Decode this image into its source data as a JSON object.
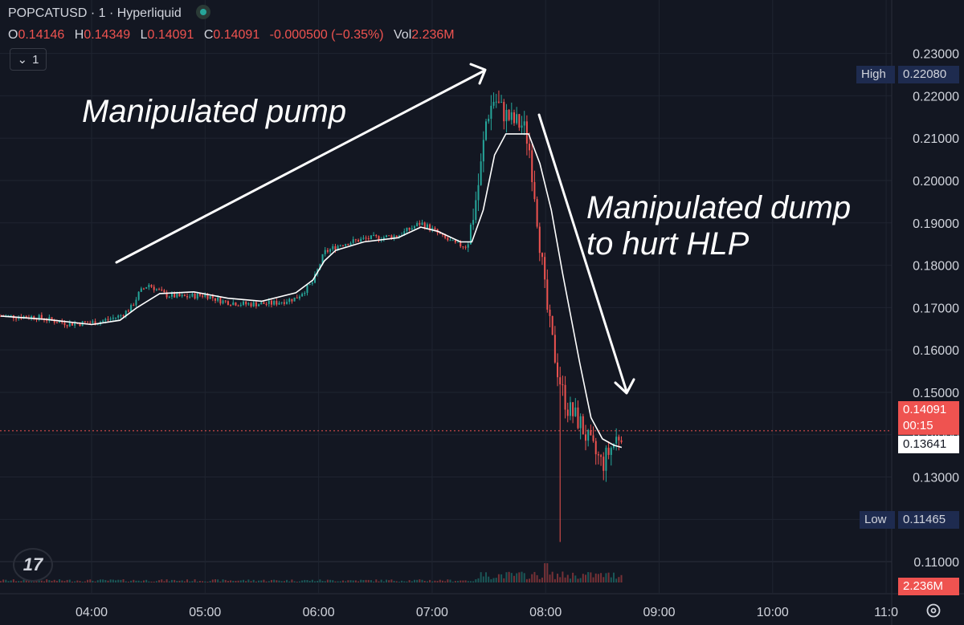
{
  "header": {
    "title": "POPCATUSD · 1 · Hyperliquid",
    "ohlc": [
      {
        "k": "O",
        "v": "0.14146"
      },
      {
        "k": "H",
        "v": "0.14349"
      },
      {
        "k": "L",
        "v": "0.14091"
      },
      {
        "k": "C",
        "v": "0.14091"
      },
      {
        "k": "",
        "v": "-0.000500 (−0.35%)"
      },
      {
        "k": "Vol",
        "v": "2.236M"
      }
    ],
    "indicator_count": "1"
  },
  "annotations": {
    "pump": "Manipulated pump",
    "dump_line1": "Manipulated dump",
    "dump_line2": "to hurt HLP"
  },
  "price_tags": {
    "high_label": "High",
    "high_value": "0.22080",
    "low_label": "Low",
    "low_value": "0.11465",
    "last_price": "0.14091",
    "countdown": "00:15",
    "ma_value": "0.13641",
    "volume": "2.236M"
  },
  "colors": {
    "background": "#131722",
    "up": "#26a69a",
    "down": "#ef5350",
    "ma": "#ffffff",
    "tag_navy": "#1e2b4f"
  },
  "chart_data": {
    "type": "candlestick",
    "grid": true,
    "y_axis": {
      "range": [
        0.105,
        0.234
      ],
      "ticks": [
        "0.23000",
        "0.22000",
        "0.21000",
        "0.20000",
        "0.19000",
        "0.18000",
        "0.17000",
        "0.16000",
        "0.15000",
        "0.14000",
        "0.13000",
        "0.12000",
        "0.11000"
      ],
      "tick_values": [
        0.23,
        0.22,
        0.21,
        0.2,
        0.19,
        0.18,
        0.17,
        0.16,
        0.15,
        0.14,
        0.13,
        0.12,
        0.11
      ]
    },
    "x_axis": {
      "ticks": [
        "04:00",
        "05:00",
        "06:00",
        "07:00",
        "08:00",
        "09:00",
        "10:00",
        "11:0"
      ],
      "range_hours": [
        3.2,
        11.05
      ]
    },
    "price_path": [
      [
        3.2,
        0.168
      ],
      [
        3.5,
        0.1678
      ],
      [
        3.8,
        0.1662
      ],
      [
        4.05,
        0.1665
      ],
      [
        4.25,
        0.168
      ],
      [
        4.35,
        0.17
      ],
      [
        4.42,
        0.1735
      ],
      [
        4.5,
        0.1755
      ],
      [
        4.65,
        0.173
      ],
      [
        4.8,
        0.1725
      ],
      [
        5.0,
        0.173
      ],
      [
        5.15,
        0.1715
      ],
      [
        5.35,
        0.1708
      ],
      [
        5.6,
        0.171
      ],
      [
        5.8,
        0.1722
      ],
      [
        5.95,
        0.176
      ],
      [
        6.05,
        0.183
      ],
      [
        6.2,
        0.185
      ],
      [
        6.4,
        0.1862
      ],
      [
        6.7,
        0.187
      ],
      [
        6.9,
        0.19
      ],
      [
        7.0,
        0.1885
      ],
      [
        7.1,
        0.1865
      ],
      [
        7.2,
        0.185
      ],
      [
        7.3,
        0.1845
      ],
      [
        7.35,
        0.19
      ],
      [
        7.42,
        0.201
      ],
      [
        7.48,
        0.215
      ],
      [
        7.55,
        0.2195
      ],
      [
        7.6,
        0.217
      ],
      [
        7.7,
        0.214
      ],
      [
        7.8,
        0.213
      ],
      [
        7.85,
        0.209
      ],
      [
        7.9,
        0.198
      ],
      [
        7.95,
        0.185
      ],
      [
        8.0,
        0.172
      ],
      [
        8.05,
        0.163
      ],
      [
        8.1,
        0.156
      ],
      [
        8.15,
        0.15
      ],
      [
        8.2,
        0.146
      ],
      [
        8.3,
        0.143
      ],
      [
        8.4,
        0.137
      ],
      [
        8.5,
        0.133
      ],
      [
        8.6,
        0.138
      ],
      [
        8.67,
        0.141
      ]
    ],
    "ma_path": [
      [
        3.2,
        0.168
      ],
      [
        3.6,
        0.1672
      ],
      [
        4.0,
        0.166
      ],
      [
        4.25,
        0.167
      ],
      [
        4.4,
        0.17
      ],
      [
        4.6,
        0.1733
      ],
      [
        4.9,
        0.1737
      ],
      [
        5.2,
        0.1722
      ],
      [
        5.5,
        0.1715
      ],
      [
        5.8,
        0.1735
      ],
      [
        5.95,
        0.1765
      ],
      [
        6.05,
        0.181
      ],
      [
        6.15,
        0.1835
      ],
      [
        6.4,
        0.1855
      ],
      [
        6.7,
        0.1865
      ],
      [
        6.9,
        0.189
      ],
      [
        7.05,
        0.188
      ],
      [
        7.25,
        0.1855
      ],
      [
        7.35,
        0.1855
      ],
      [
        7.45,
        0.193
      ],
      [
        7.55,
        0.206
      ],
      [
        7.65,
        0.211
      ],
      [
        7.85,
        0.211
      ],
      [
        7.95,
        0.204
      ],
      [
        8.05,
        0.193
      ],
      [
        8.15,
        0.178
      ],
      [
        8.3,
        0.157
      ],
      [
        8.4,
        0.144
      ],
      [
        8.5,
        0.139
      ],
      [
        8.6,
        0.1375
      ],
      [
        8.67,
        0.137
      ]
    ],
    "high": 0.2208,
    "low": 0.11465,
    "low_time_h": 8.13,
    "last": 0.14091,
    "moving_average_last": 0.13641,
    "volume_last": "2.236M"
  }
}
